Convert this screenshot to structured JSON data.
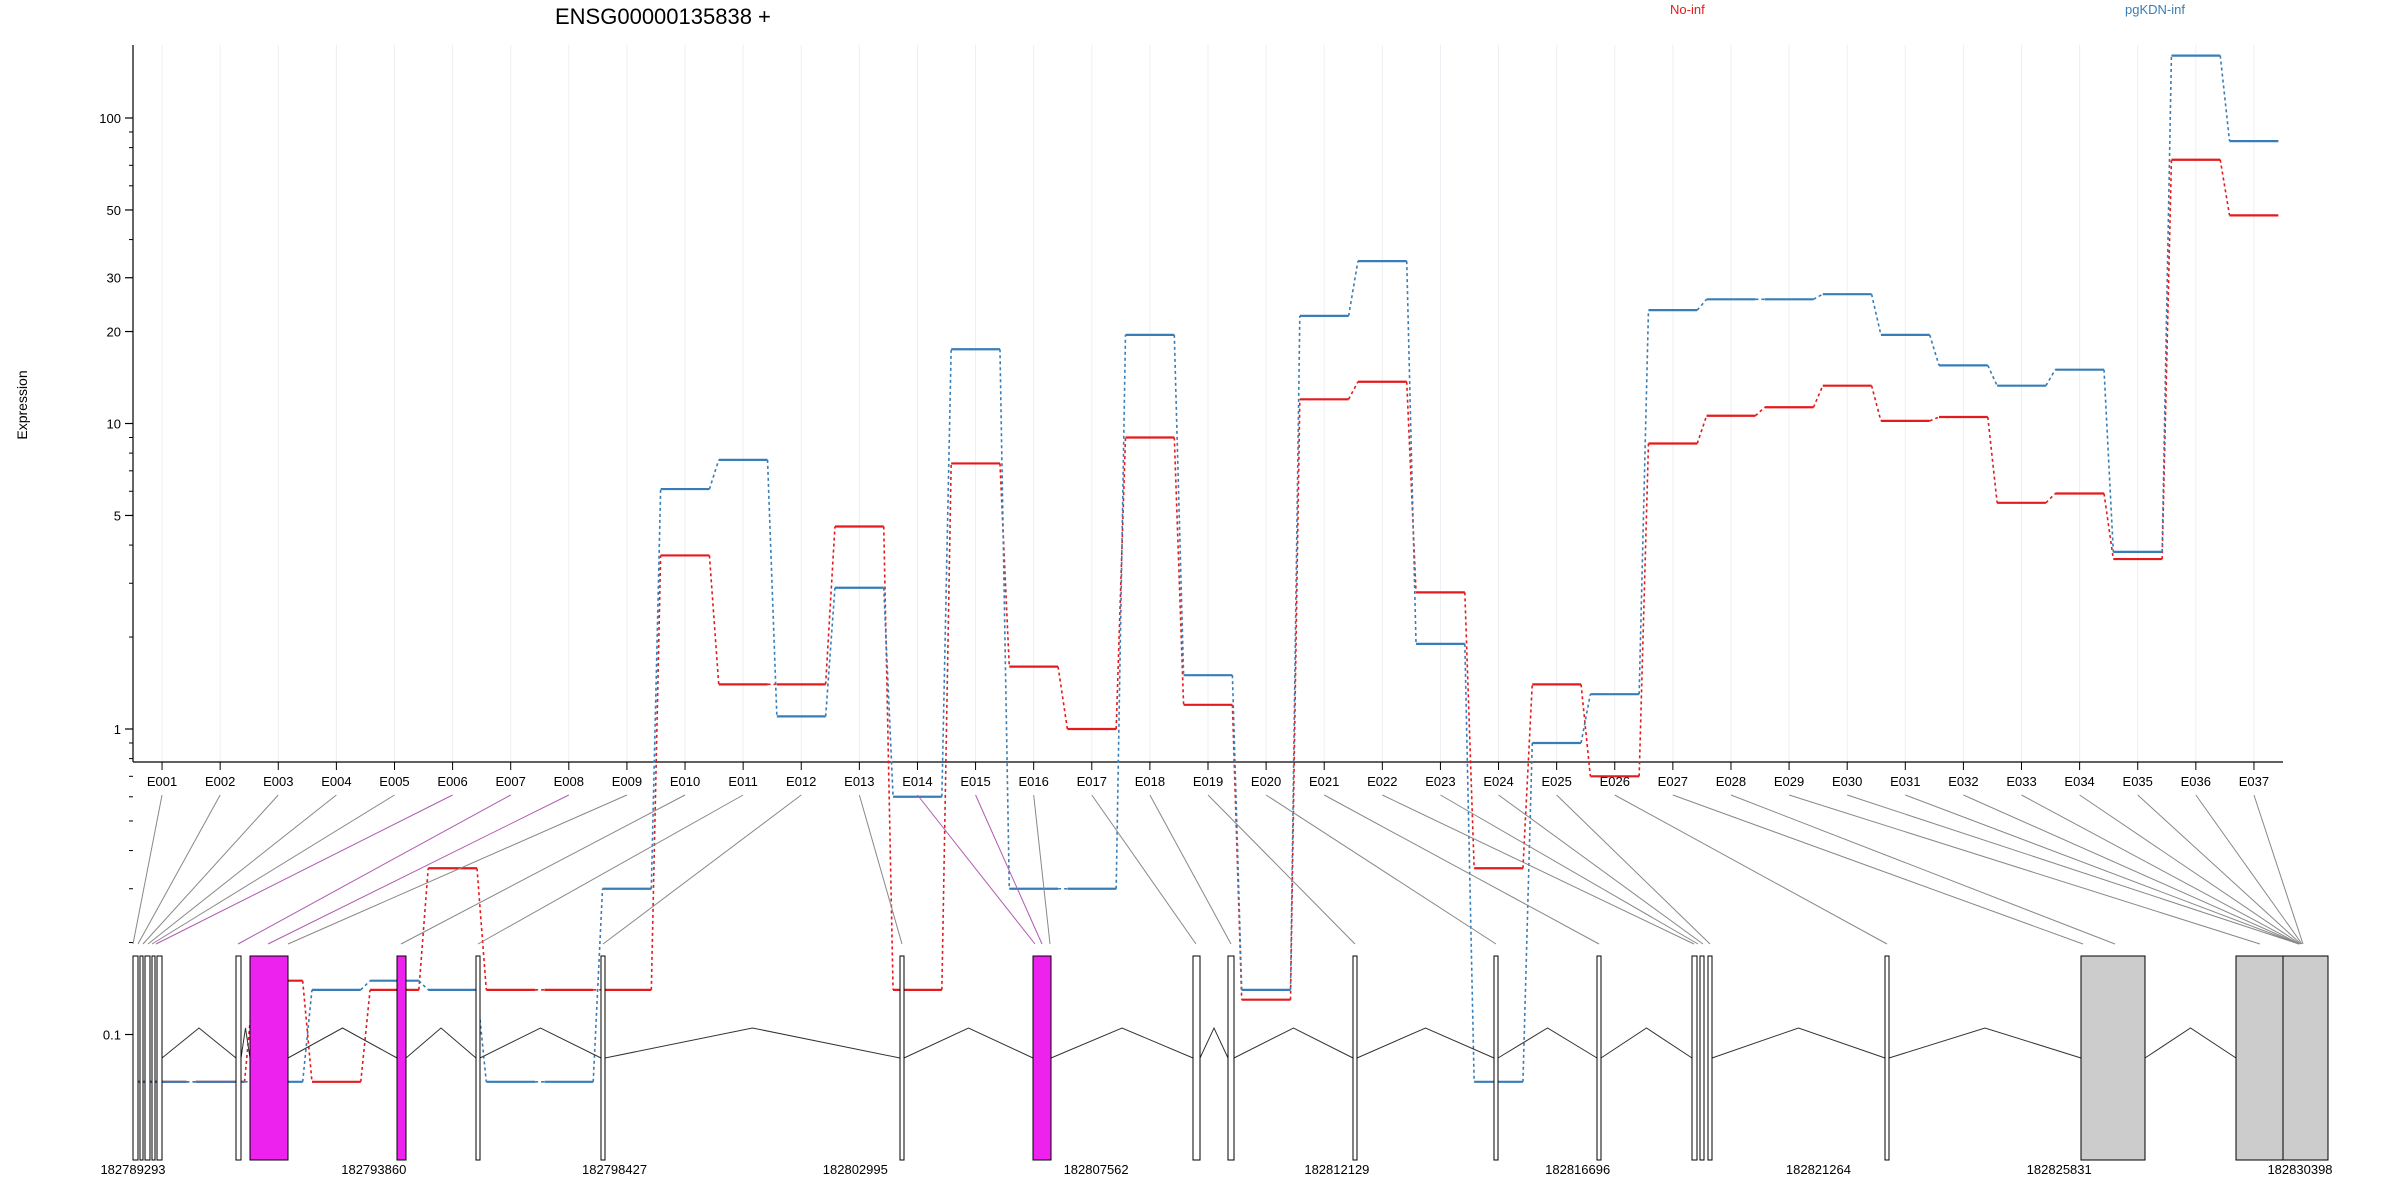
{
  "chart_data": {
    "type": "line",
    "title": "ENSG00000135838 +",
    "ylabel": "Expression",
    "y_scale": "log",
    "y_ticks": [
      {
        "value": 0.1,
        "label": "0.1"
      },
      {
        "value": 1,
        "label": "1"
      },
      {
        "value": 5,
        "label": "5"
      },
      {
        "value": 10,
        "label": "10"
      },
      {
        "value": 20,
        "label": "20"
      },
      {
        "value": 30,
        "label": "30"
      },
      {
        "value": 50,
        "label": "50"
      },
      {
        "value": 100,
        "label": "100"
      }
    ],
    "grid": "vertical",
    "legend_position": "top",
    "categories": [
      "E001",
      "E002",
      "E003",
      "E004",
      "E005",
      "E006",
      "E007",
      "E008",
      "E009",
      "E010",
      "E011",
      "E012",
      "E013",
      "E014",
      "E015",
      "E016",
      "E017",
      "E018",
      "E019",
      "E020",
      "E021",
      "E022",
      "E023",
      "E024",
      "E025",
      "E026",
      "E027",
      "E028",
      "E029",
      "E030",
      "E031",
      "E032",
      "E033",
      "E034",
      "E035",
      "E036",
      "E037"
    ],
    "series": [
      {
        "name": "No-inf",
        "color": "#e41a1c",
        "values": [
          0.07,
          0.07,
          0.15,
          0.07,
          0.14,
          0.35,
          0.14,
          0.14,
          0.14,
          3.7,
          1.4,
          1.4,
          4.6,
          0.14,
          7.4,
          1.6,
          1.0,
          9.0,
          1.2,
          0.13,
          12.0,
          13.7,
          2.8,
          0.35,
          1.4,
          0.7,
          8.6,
          10.6,
          11.3,
          13.3,
          10.2,
          10.5,
          5.5,
          5.9,
          3.6,
          73,
          48
        ]
      },
      {
        "name": "pgKDN-inf",
        "color": "#377eb8",
        "values": [
          0.07,
          0.07,
          0.07,
          0.14,
          0.15,
          0.14,
          0.07,
          0.07,
          0.3,
          6.1,
          7.6,
          1.1,
          2.9,
          0.6,
          17.5,
          0.3,
          0.3,
          19.5,
          1.5,
          0.14,
          22.5,
          34,
          1.9,
          0.07,
          0.9,
          1.3,
          23.5,
          25.5,
          25.5,
          26.5,
          19.5,
          15.5,
          13.3,
          15,
          3.8,
          160,
          84
        ]
      }
    ],
    "gene_model": {
      "coord_labels": [
        "182789293",
        "182793860",
        "182798427",
        "182802995",
        "182807562",
        "182812129",
        "182816696",
        "182821264",
        "182825831",
        "182830398"
      ],
      "highlight_color": "#ee22ee",
      "exon_fill": "#ffffff",
      "utr_fill": "#cccccc"
    }
  }
}
